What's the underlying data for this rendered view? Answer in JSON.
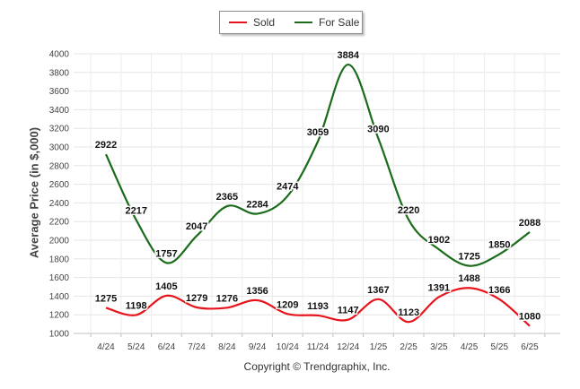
{
  "legend": {
    "sold": "Sold",
    "for_sale": "For Sale"
  },
  "footer": "Copyright © Trendgraphix, Inc.",
  "chart_data": {
    "type": "line",
    "title": "",
    "xlabel": "",
    "ylabel": "Average Price (in $,000)",
    "ylim": [
      1000,
      4000
    ],
    "yticks": [
      1000,
      1200,
      1400,
      1600,
      1800,
      2000,
      2200,
      2400,
      2600,
      2800,
      3000,
      3200,
      3400,
      3600,
      3800,
      4000
    ],
    "categories": [
      "4/24",
      "5/24",
      "6/24",
      "7/24",
      "8/24",
      "9/24",
      "10/24",
      "11/24",
      "12/24",
      "1/25",
      "2/25",
      "3/25",
      "4/25",
      "5/25",
      "6/25"
    ],
    "grid": true,
    "legend_position": "top-center",
    "series": [
      {
        "name": "Sold",
        "color": "#e8141c",
        "values": [
          1275,
          1198,
          1405,
          1279,
          1276,
          1356,
          1209,
          1193,
          1147,
          1367,
          1123,
          1391,
          1488,
          1366,
          1080
        ]
      },
      {
        "name": "For Sale",
        "color": "#1a6b1a",
        "values": [
          2922,
          2217,
          1757,
          2047,
          2365,
          2284,
          2474,
          3059,
          3884,
          3090,
          2220,
          1902,
          1725,
          1850,
          2088
        ]
      }
    ]
  }
}
